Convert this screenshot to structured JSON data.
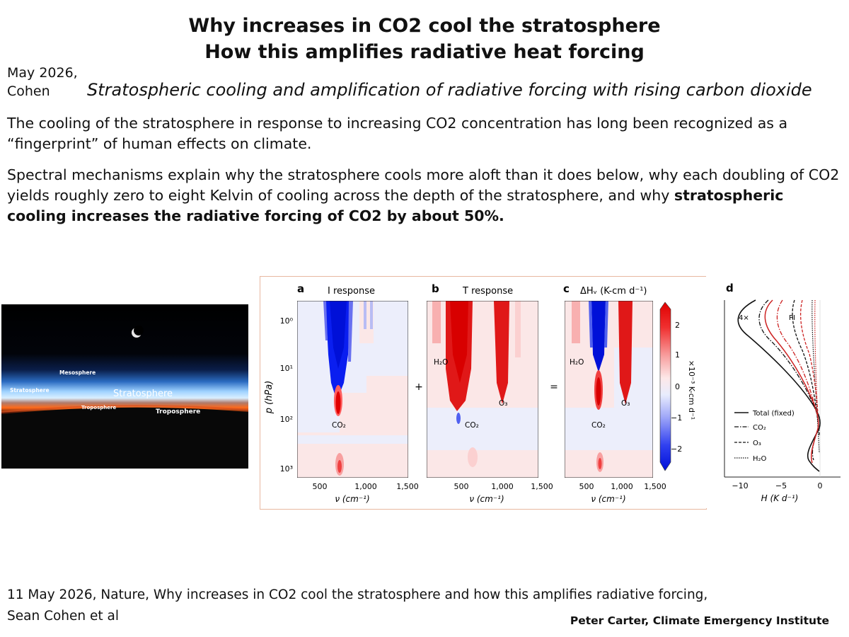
{
  "header": {
    "title_line1": "Why increases in CO2 cool the stratosphere",
    "title_line2": "How this amplifies radiative heat forcing",
    "date": "May 2026,",
    "author_short": "Cohen",
    "subtitle": "Stratospheric cooling and amplification of radiative forcing with rising carbon dioxide"
  },
  "body": {
    "paragraph1": "The cooling of the stratosphere in response to increasing CO2 concentration has long been recognized as a “fingerprint” of human effects on climate.",
    "paragraph2_plain": "Spectral mechanisms explain why the stratosphere cools more aloft than it does below, why each doubling of CO2 yields roughly zero to eight Kelvin of cooling across the depth of the stratosphere, and why ",
    "paragraph2_bold": "stratospheric cooling increases the radiative forcing of CO2 by about 50%."
  },
  "photo": {
    "labels": {
      "mesosphere": "Mesosphere",
      "stratosphere_small": "Stratosphere",
      "stratosphere_big": "Stratosphere",
      "troposphere_small": "Troposphere",
      "troposphere_big": "Troposphere"
    }
  },
  "figure": {
    "panels": [
      {
        "letter": "a",
        "title": "I response"
      },
      {
        "letter": "b",
        "title": "T response"
      },
      {
        "letter": "c",
        "title": "ΔHᵥ (K-cm d⁻¹)"
      },
      {
        "letter": "d"
      }
    ],
    "operators": {
      "plus": "+",
      "equals": "="
    },
    "y_axis_label": "p (hPa)",
    "y_ticks": [
      "10⁰",
      "10¹",
      "10²",
      "10³"
    ],
    "x_axis_label": "ν (cm⁻¹)",
    "x_ticks": [
      "500",
      "1,000",
      "1,500"
    ],
    "annotations": {
      "co2": "CO₂",
      "h2o": "H₂O",
      "o3": "O₃"
    },
    "colorbar": {
      "label": "×10⁻³ K-cm d⁻¹",
      "ticks": [
        "2",
        "1",
        "0",
        "−1",
        "−2"
      ]
    },
    "panel_d": {
      "x_label": "H (K d⁻¹)",
      "x_ticks": [
        "−10",
        "−5",
        "0"
      ],
      "curve_labels": {
        "quad": "4×",
        "pi": "PI"
      },
      "legend": [
        "Total (fixed)",
        "CO₂",
        "O₃",
        "H₂O"
      ],
      "colors": {
        "quad": "#111111",
        "pi": "#cc2222"
      }
    }
  },
  "footer": {
    "citation_line1": "11 May 2026, Nature, Why increases in CO2 cool the stratosphere and how this amplifies radiative forcing,",
    "citation_line2": "Sean Cohen et al",
    "credit": "Peter Carter, Climate Emergency Institute"
  }
}
